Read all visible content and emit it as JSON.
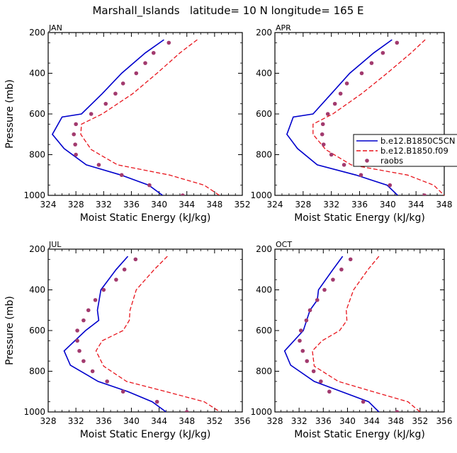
{
  "title": "Marshall_Islands   latitude= 10 N longitude= 165 E",
  "colors": {
    "model1": "#0000cc",
    "model2": "#e8141c",
    "raobs": "#a23a6e"
  },
  "legend": {
    "panel": 1,
    "entries": [
      {
        "key": "model1",
        "label": "b.e12.B1850C5CN"
      },
      {
        "key": "model2",
        "label": "b.e12.B1850.f09"
      },
      {
        "key": "raobs",
        "label": "raobs"
      }
    ]
  },
  "chart_data": [
    {
      "type": "line",
      "title": "JAN",
      "xlabel": "Moist Static Energy (kJ/kg)",
      "ylabel": "Pressure (mb)",
      "xlim": [
        324,
        352
      ],
      "ylim": [
        200,
        1000
      ],
      "yinverted": true,
      "xticks": [
        324,
        328,
        332,
        336,
        340,
        344,
        348,
        352
      ],
      "yticks": [
        200,
        400,
        600,
        800,
        1000
      ],
      "series": [
        {
          "name": "b.e12.B1850C5CN",
          "style": "solid",
          "points": [
            [
              340.7,
              235
            ],
            [
              338,
              300
            ],
            [
              334.6,
              400
            ],
            [
              331.8,
              500
            ],
            [
              328.8,
              600
            ],
            [
              326,
              615
            ],
            [
              324.6,
              700
            ],
            [
              326.3,
              770
            ],
            [
              329.5,
              850
            ],
            [
              334.5,
              900
            ],
            [
              338.5,
              950
            ],
            [
              340.5,
              1000
            ]
          ]
        },
        {
          "name": "b.e12.B1850.f09",
          "style": "dashed",
          "points": [
            [
              345.5,
              235
            ],
            [
              343,
              300
            ],
            [
              339.7,
              400
            ],
            [
              336.2,
              500
            ],
            [
              331.8,
              600
            ],
            [
              328.8,
              650
            ],
            [
              328.7,
              700
            ],
            [
              330.2,
              775
            ],
            [
              334,
              850
            ],
            [
              341.5,
              900
            ],
            [
              346.5,
              950
            ],
            [
              348.7,
              1000
            ]
          ]
        },
        {
          "name": "raobs",
          "style": "markers",
          "points": [
            [
              341.4,
              250
            ],
            [
              339.2,
              300
            ],
            [
              338,
              350
            ],
            [
              336.7,
              400
            ],
            [
              334.8,
              450
            ],
            [
              333.7,
              500
            ],
            [
              332.3,
              550
            ],
            [
              330.2,
              600
            ],
            [
              328,
              650
            ],
            [
              327.7,
              700
            ],
            [
              327.9,
              750
            ],
            [
              328,
              800
            ],
            [
              331.3,
              850
            ],
            [
              334.6,
              900
            ],
            [
              338.6,
              950
            ],
            [
              343.4,
              1000
            ]
          ]
        }
      ]
    },
    {
      "type": "line",
      "title": "APR",
      "xlabel": "Moist Static Energy (kJ/kg)",
      "ylabel": "",
      "xlim": [
        324,
        348
      ],
      "ylim": [
        200,
        1000
      ],
      "yinverted": true,
      "xticks": [
        324,
        328,
        332,
        336,
        340,
        344,
        348
      ],
      "yticks": [
        200,
        400,
        600,
        800,
        1000
      ],
      "series": [
        {
          "name": "b.e12.B1850C5CN",
          "style": "solid",
          "points": [
            [
              340.6,
              235
            ],
            [
              338,
              300
            ],
            [
              334.6,
              400
            ],
            [
              332,
              500
            ],
            [
              329.4,
              600
            ],
            [
              326.6,
              615
            ],
            [
              325.7,
              700
            ],
            [
              327.2,
              770
            ],
            [
              330,
              850
            ],
            [
              335.5,
              900
            ],
            [
              339.9,
              950
            ],
            [
              341.4,
              1000
            ]
          ]
        },
        {
          "name": "b.e12.B1850.f09",
          "style": "dashed",
          "points": [
            [
              345.3,
              235
            ],
            [
              343.3,
              300
            ],
            [
              339.9,
              400
            ],
            [
              336.3,
              500
            ],
            [
              332.2,
              600
            ],
            [
              329.4,
              650
            ],
            [
              329.4,
              700
            ],
            [
              331.2,
              775
            ],
            [
              334.8,
              850
            ],
            [
              342.8,
              900
            ],
            [
              346.5,
              950
            ],
            [
              348,
              1000
            ]
          ]
        },
        {
          "name": "raobs",
          "style": "markers",
          "points": [
            [
              341.3,
              250
            ],
            [
              339.3,
              300
            ],
            [
              337.7,
              350
            ],
            [
              336.3,
              400
            ],
            [
              334.2,
              450
            ],
            [
              333.3,
              500
            ],
            [
              332.5,
              550
            ],
            [
              331.5,
              600
            ],
            [
              330.8,
              650
            ],
            [
              330.7,
              700
            ],
            [
              330.9,
              750
            ],
            [
              332,
              800
            ],
            [
              333.8,
              850
            ],
            [
              336.2,
              900
            ],
            [
              340.3,
              950
            ],
            [
              345.2,
              1000
            ]
          ]
        }
      ]
    },
    {
      "type": "line",
      "title": "JUL",
      "xlabel": "Moist Static Energy (kJ/kg)",
      "ylabel": "Pressure (mb)",
      "xlim": [
        328,
        356
      ],
      "ylim": [
        200,
        1000
      ],
      "yinverted": true,
      "xticks": [
        328,
        332,
        336,
        340,
        344,
        348,
        352,
        356
      ],
      "yticks": [
        200,
        400,
        600,
        800,
        1000
      ],
      "series": [
        {
          "name": "b.e12.B1850C5CN",
          "style": "solid",
          "points": [
            [
              339.5,
              235
            ],
            [
              337.8,
              300
            ],
            [
              335.6,
              400
            ],
            [
              335.1,
              500
            ],
            [
              335.3,
              550
            ],
            [
              333.4,
              600
            ],
            [
              330.3,
              700
            ],
            [
              331.2,
              770
            ],
            [
              335.2,
              850
            ],
            [
              339.5,
              900
            ],
            [
              343,
              950
            ],
            [
              345,
              1000
            ]
          ]
        },
        {
          "name": "b.e12.B1850.f09",
          "style": "dashed",
          "points": [
            [
              345.2,
              235
            ],
            [
              343.3,
              300
            ],
            [
              340.7,
              400
            ],
            [
              339.8,
              500
            ],
            [
              339.7,
              550
            ],
            [
              338.8,
              600
            ],
            [
              335.8,
              650
            ],
            [
              334.9,
              700
            ],
            [
              336,
              775
            ],
            [
              339.3,
              850
            ],
            [
              345,
              900
            ],
            [
              350.5,
              950
            ],
            [
              352.8,
              1000
            ]
          ]
        },
        {
          "name": "raobs",
          "style": "markers",
          "points": [
            [
              340.6,
              250
            ],
            [
              339,
              300
            ],
            [
              337.8,
              350
            ],
            [
              336,
              400
            ],
            [
              334.8,
              450
            ],
            [
              333.8,
              500
            ],
            [
              333.1,
              550
            ],
            [
              332.2,
              600
            ],
            [
              332.2,
              650
            ],
            [
              332.5,
              700
            ],
            [
              333.1,
              750
            ],
            [
              334.4,
              800
            ],
            [
              336.5,
              850
            ],
            [
              338.8,
              900
            ],
            [
              343.7,
              950
            ],
            [
              348,
              1000
            ]
          ]
        }
      ]
    },
    {
      "type": "line",
      "title": "OCT",
      "xlabel": "Moist Static Energy (kJ/kg)",
      "ylabel": "",
      "xlim": [
        328,
        356
      ],
      "ylim": [
        200,
        1000
      ],
      "yinverted": true,
      "xticks": [
        328,
        332,
        336,
        340,
        344,
        348,
        352,
        356
      ],
      "yticks": [
        200,
        400,
        600,
        800,
        1000
      ],
      "series": [
        {
          "name": "b.e12.B1850C5CN",
          "style": "solid",
          "points": [
            [
              339.2,
              235
            ],
            [
              337.6,
              300
            ],
            [
              335.2,
              400
            ],
            [
              335,
              450
            ],
            [
              333.8,
              500
            ],
            [
              332.7,
              600
            ],
            [
              329.6,
              700
            ],
            [
              330.6,
              770
            ],
            [
              334.5,
              850
            ],
            [
              339,
              900
            ],
            [
              343.5,
              950
            ],
            [
              345.2,
              1000
            ]
          ]
        },
        {
          "name": "b.e12.B1850.f09",
          "style": "dashed",
          "points": [
            [
              345.2,
              235
            ],
            [
              343.4,
              300
            ],
            [
              341,
              400
            ],
            [
              339.8,
              500
            ],
            [
              339.9,
              550
            ],
            [
              338.7,
              600
            ],
            [
              335.8,
              650
            ],
            [
              334.2,
              700
            ],
            [
              334.5,
              775
            ],
            [
              338.5,
              850
            ],
            [
              344.2,
              900
            ],
            [
              350,
              950
            ],
            [
              352,
              1000
            ]
          ]
        },
        {
          "name": "raobs",
          "style": "markers",
          "points": [
            [
              340.5,
              250
            ],
            [
              339,
              300
            ],
            [
              337.6,
              350
            ],
            [
              336.2,
              400
            ],
            [
              335,
              450
            ],
            [
              333.8,
              500
            ],
            [
              333.2,
              550
            ],
            [
              332.3,
              600
            ],
            [
              332.1,
              650
            ],
            [
              332.6,
              700
            ],
            [
              333.3,
              750
            ],
            [
              334.4,
              800
            ],
            [
              335.6,
              850
            ],
            [
              337,
              900
            ],
            [
              342.6,
              950
            ],
            [
              348.2,
              1000
            ]
          ]
        }
      ]
    }
  ]
}
